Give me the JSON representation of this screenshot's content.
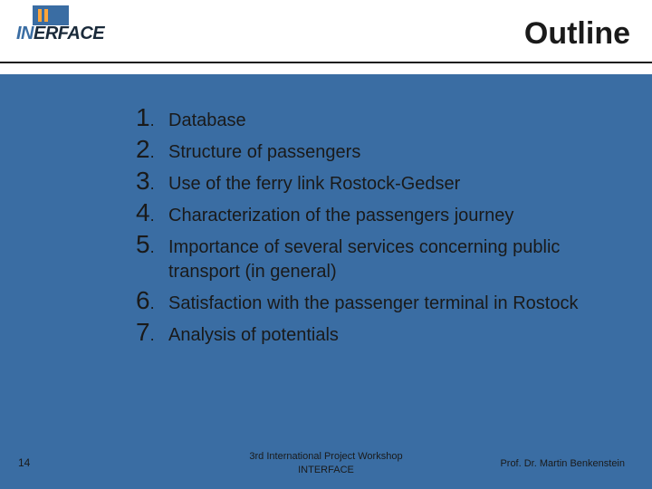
{
  "colors": {
    "background_main": "#3a6da3",
    "background_header": "#ffffff",
    "text_dark": "#1a1a1a",
    "logo_blue": "#3a6da3",
    "logo_orange": "#ffa53a",
    "rule": "#1a1a1a"
  },
  "typography": {
    "title_fontsize": 34,
    "title_weight": 900,
    "number_fontsize": 28,
    "item_fontsize": 20,
    "footer_fontsize": 11,
    "pagenum_fontsize": 12,
    "font_family": "Verdana"
  },
  "logo": {
    "line1_prefix": "IN",
    "line1_suffix": "ERFACE",
    "icon": "building-icon"
  },
  "header": {
    "title": "Outline"
  },
  "outline": {
    "items": [
      {
        "n": "1",
        "text": "Database"
      },
      {
        "n": "2",
        "text": "Structure of passengers"
      },
      {
        "n": "3",
        "text": "Use of the ferry link Rostock-Gedser"
      },
      {
        "n": "4",
        "text": "Characterization of the passengers journey"
      },
      {
        "n": "5",
        "text": "Importance of several services concerning public transport (in general)"
      },
      {
        "n": "6",
        "text": "Satisfaction with the passenger terminal in Rostock"
      },
      {
        "n": "7",
        "text": "Analysis of potentials"
      }
    ]
  },
  "footer": {
    "page_number": "14",
    "center_line1": "3rd International Project Workshop",
    "center_line2": "INTERFACE",
    "author": "Prof. Dr. Martin Benkenstein"
  }
}
